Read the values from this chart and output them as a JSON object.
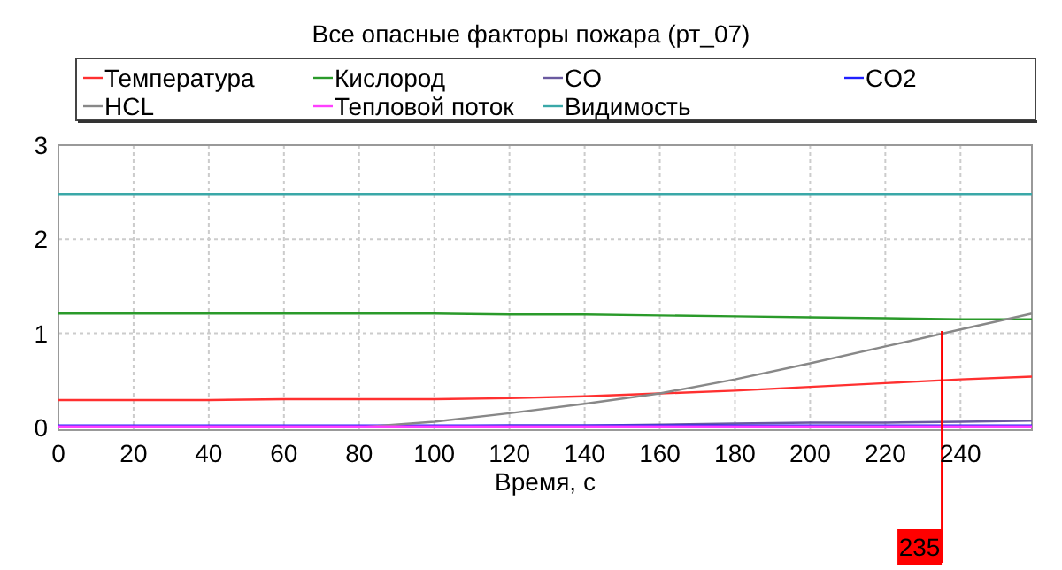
{
  "chart_data": {
    "type": "line",
    "title": "Все опасные факторы пожара (рт_07)",
    "xlabel": "Время, с",
    "xlim": [
      0,
      259
    ],
    "xticks": [
      0,
      20,
      40,
      60,
      80,
      100,
      120,
      140,
      160,
      180,
      200,
      220,
      240
    ],
    "ylim": [
      -0.03,
      3
    ],
    "yticks": [
      0,
      1,
      2,
      3
    ],
    "grid": true,
    "legend": "top",
    "line_style": "solid",
    "marker": "none",
    "x": [
      0,
      20,
      40,
      60,
      80,
      100,
      120,
      140,
      160,
      180,
      200,
      220,
      240,
      259
    ],
    "series": [
      {
        "name": "Температура",
        "color": "#ff3030",
        "values": [
          0.29,
          0.29,
          0.29,
          0.3,
          0.3,
          0.3,
          0.31,
          0.33,
          0.36,
          0.39,
          0.43,
          0.47,
          0.51,
          0.54
        ]
      },
      {
        "name": "Кислород",
        "color": "#2a9a2a",
        "values": [
          1.21,
          1.21,
          1.21,
          1.21,
          1.21,
          1.21,
          1.2,
          1.2,
          1.19,
          1.18,
          1.17,
          1.16,
          1.15,
          1.15
        ]
      },
      {
        "name": "CO",
        "color": "#6a5aa0",
        "values": [
          null,
          null,
          null,
          0.01,
          0.01,
          0.01,
          0.02,
          0.02,
          0.03,
          0.04,
          0.05,
          0.05,
          0.06,
          0.07
        ]
      },
      {
        "name": "CO2",
        "color": "#2020ff",
        "values": [
          0.02,
          0.02,
          0.02,
          0.02,
          0.02,
          0.02,
          0.02,
          0.02,
          0.02,
          0.02,
          0.02,
          0.02,
          0.02,
          0.02
        ]
      },
      {
        "name": "HCL",
        "color": "#888888",
        "values": [
          0,
          0,
          0,
          0,
          0,
          0.06,
          0.15,
          0.25,
          0.36,
          0.51,
          0.68,
          0.86,
          1.04,
          1.21
        ]
      },
      {
        "name": "Тепловой поток",
        "color": "#ff40ff",
        "values": [
          0.01,
          0.01,
          0.01,
          0.01,
          0.01,
          0.01,
          0.01,
          0.01,
          0.01,
          0.01,
          0.01,
          0.01,
          0.01,
          0.01
        ]
      },
      {
        "name": "Видимость",
        "color": "#3aa8a8",
        "values": [
          2.48,
          2.48,
          2.48,
          2.48,
          2.48,
          2.48,
          2.48,
          2.48,
          2.48,
          2.48,
          2.48,
          2.48,
          2.48,
          2.48
        ]
      }
    ],
    "ref_lines": [
      {
        "axis": "x",
        "value": 235,
        "label": "235",
        "color": "#ff0000"
      }
    ]
  }
}
